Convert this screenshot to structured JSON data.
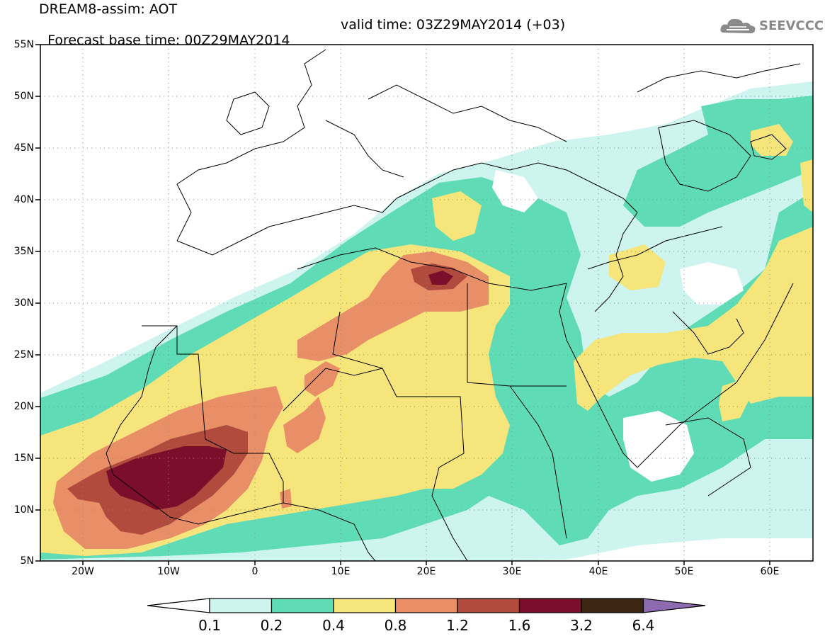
{
  "header": {
    "title": "DREAM8-assim: AOT",
    "base_time": "Forecast base time: 00Z29MAY2014",
    "valid_time": "valid time: 03Z29MAY2014 (+03)",
    "logo_text": "SEEVCCC"
  },
  "map": {
    "lat_labels": [
      "55N",
      "50N",
      "45N",
      "40N",
      "35N",
      "30N",
      "25N",
      "20N",
      "15N",
      "10N",
      "5N"
    ],
    "lon_labels": [
      "20W",
      "10W",
      "0",
      "10E",
      "20E",
      "30E",
      "40E",
      "50E",
      "60E"
    ],
    "extent": {
      "lon": [
        -25,
        65
      ],
      "lat": [
        5,
        55
      ]
    }
  },
  "colorbar": {
    "labels": [
      "0.1",
      "0.2",
      "0.4",
      "0.8",
      "1.2",
      "1.6",
      "3.2",
      "6.4"
    ],
    "colors": [
      "#cdf4ee",
      "#5fdcb5",
      "#f6e57a",
      "#e88f68",
      "#b04b3e",
      "#7b0e2a",
      "#3d2614",
      "#8e6ab0"
    ],
    "low_color": "#ffffff"
  }
}
